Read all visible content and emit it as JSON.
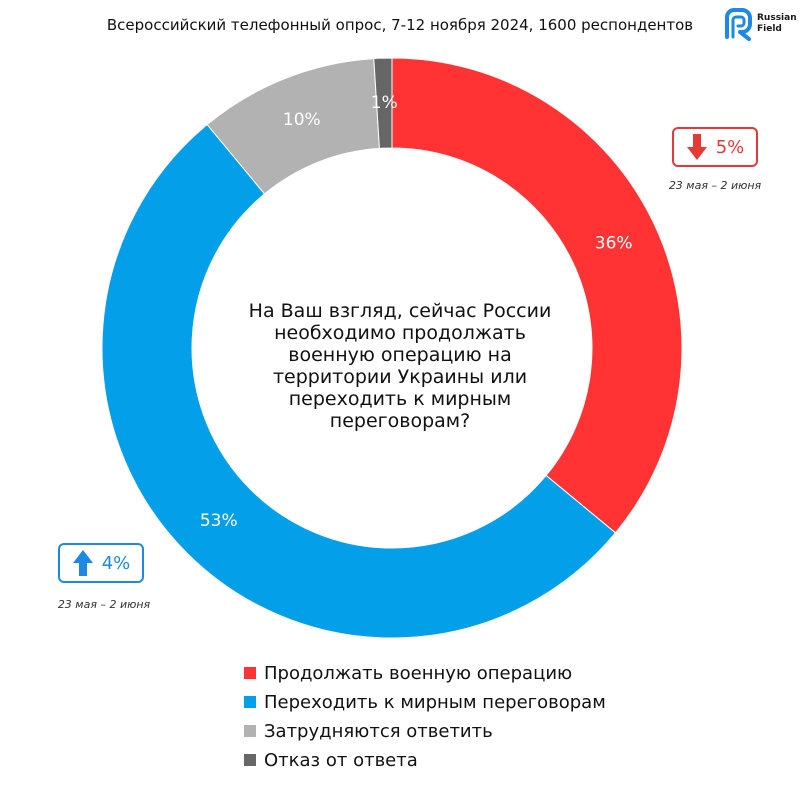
{
  "header": {
    "title": "Всероссийский телефонный опрос, 7-12 ноября 2024, 1600 респондентов"
  },
  "logo": {
    "line1": "Russian",
    "line2": "Field",
    "color": "#1e88e5"
  },
  "question": "На Ваш взгляд, сейчас России необходимо продолжать военную операцию на территории Украины или переходить к мирным переговорам?",
  "chart_data": {
    "type": "pie",
    "variant": "donut",
    "title": "",
    "slices": [
      {
        "name": "Продолжать военную операцию",
        "value": 36,
        "label": "36%",
        "color": "#ff3333"
      },
      {
        "name": "Переходить к мирным переговорам",
        "value": 53,
        "label": "53%",
        "color": "#049fe9"
      },
      {
        "name": "Затрудняются ответить",
        "value": 10,
        "label": "10%",
        "color": "#b2b2b2"
      },
      {
        "name": "Отказ от ответа",
        "value": 1,
        "label": "1%",
        "color": "#666666"
      }
    ],
    "legend_position": "bottom",
    "changes": [
      {
        "series": "Продолжать военную операцию",
        "direction": "down",
        "value": "5%",
        "period": "23 мая – 2 июня",
        "color": "#e53935"
      },
      {
        "series": "Переходить к мирным переговорам",
        "direction": "up",
        "value": "4%",
        "period": "23 мая – 2 июня",
        "color": "#1e88e5"
      }
    ]
  }
}
